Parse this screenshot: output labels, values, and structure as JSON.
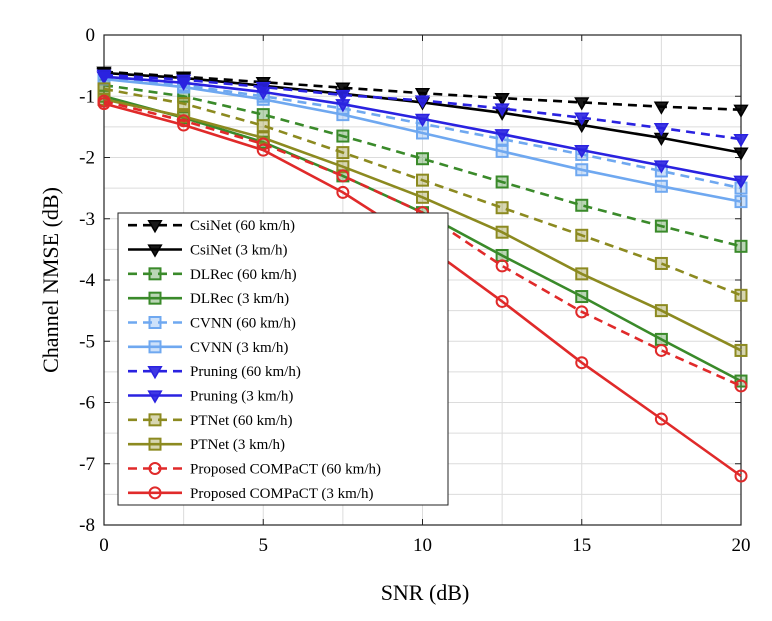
{
  "chart_data": {
    "type": "line",
    "xlabel": "SNR (dB)",
    "ylabel": "Channel NMSE (dB)",
    "xlim": [
      0,
      20
    ],
    "ylim": [
      -8,
      0
    ],
    "xticks": [
      0,
      5,
      10,
      15,
      20
    ],
    "yticks": [
      0,
      -1,
      -2,
      -3,
      -4,
      -5,
      -6,
      -7,
      -8
    ],
    "grid": true,
    "legend_position": "lower-left",
    "x": [
      0,
      2.5,
      5,
      7.5,
      10,
      12.5,
      15,
      17.5,
      20
    ],
    "series": [
      {
        "name": "CsiNet (60 km/h)",
        "color": "#000000",
        "dash": true,
        "marker": "triangle-down",
        "values": [
          -0.6,
          -0.68,
          -0.77,
          -0.86,
          -0.95,
          -1.03,
          -1.1,
          -1.17,
          -1.22
        ]
      },
      {
        "name": "CsiNet (3 km/h)",
        "color": "#000000",
        "dash": false,
        "marker": "triangle-down",
        "values": [
          -0.62,
          -0.7,
          -0.83,
          -0.96,
          -1.1,
          -1.27,
          -1.47,
          -1.68,
          -1.92
        ]
      },
      {
        "name": "DLRec (60 km/h)",
        "color": "#3a8a2a",
        "dash": true,
        "marker": "square",
        "values": [
          -0.82,
          -1.0,
          -1.3,
          -1.65,
          -2.02,
          -2.4,
          -2.78,
          -3.12,
          -3.45
        ]
      },
      {
        "name": "DLRec (3 km/h)",
        "color": "#3a8a2a",
        "dash": false,
        "marker": "square",
        "values": [
          -1.0,
          -1.35,
          -1.75,
          -2.3,
          -2.9,
          -3.6,
          -4.27,
          -4.97,
          -5.65
        ]
      },
      {
        "name": "CVNN (60 km/h)",
        "color": "#6fa8f0",
        "dash": true,
        "marker": "square",
        "values": [
          -0.7,
          -0.82,
          -1.0,
          -1.2,
          -1.45,
          -1.7,
          -1.95,
          -2.22,
          -2.5
        ]
      },
      {
        "name": "CVNN (3 km/h)",
        "color": "#6fa8f0",
        "dash": false,
        "marker": "square",
        "values": [
          -0.72,
          -0.85,
          -1.05,
          -1.3,
          -1.6,
          -1.9,
          -2.2,
          -2.47,
          -2.72
        ]
      },
      {
        "name": "Pruning (60 km/h)",
        "color": "#2a22e0",
        "dash": true,
        "marker": "triangle-down",
        "values": [
          -0.65,
          -0.73,
          -0.85,
          -0.98,
          -1.07,
          -1.2,
          -1.35,
          -1.52,
          -1.7
        ]
      },
      {
        "name": "Pruning (3 km/h)",
        "color": "#2a22e0",
        "dash": false,
        "marker": "triangle-down",
        "values": [
          -0.68,
          -0.78,
          -0.93,
          -1.13,
          -1.37,
          -1.62,
          -1.88,
          -2.13,
          -2.38
        ]
      },
      {
        "name": "PTNet (60 km/h)",
        "color": "#8c8a20",
        "dash": true,
        "marker": "square",
        "values": [
          -0.88,
          -1.12,
          -1.48,
          -1.92,
          -2.37,
          -2.82,
          -3.27,
          -3.73,
          -4.25
        ]
      },
      {
        "name": "PTNet (3 km/h)",
        "color": "#8c8a20",
        "dash": false,
        "marker": "square",
        "values": [
          -1.05,
          -1.33,
          -1.68,
          -2.15,
          -2.65,
          -3.22,
          -3.9,
          -4.5,
          -5.15
        ]
      },
      {
        "name": "Proposed COMPaCT (60 km/h)",
        "color": "#e02a2a",
        "dash": true,
        "marker": "circle",
        "values": [
          -1.08,
          -1.4,
          -1.78,
          -2.3,
          -2.9,
          -3.77,
          -4.52,
          -5.15,
          -5.73
        ]
      },
      {
        "name": "Proposed COMPaCT (3 km/h)",
        "color": "#e02a2a",
        "dash": false,
        "marker": "circle",
        "values": [
          -1.12,
          -1.47,
          -1.88,
          -2.57,
          -3.4,
          -4.35,
          -5.35,
          -6.27,
          -7.2
        ]
      }
    ]
  }
}
